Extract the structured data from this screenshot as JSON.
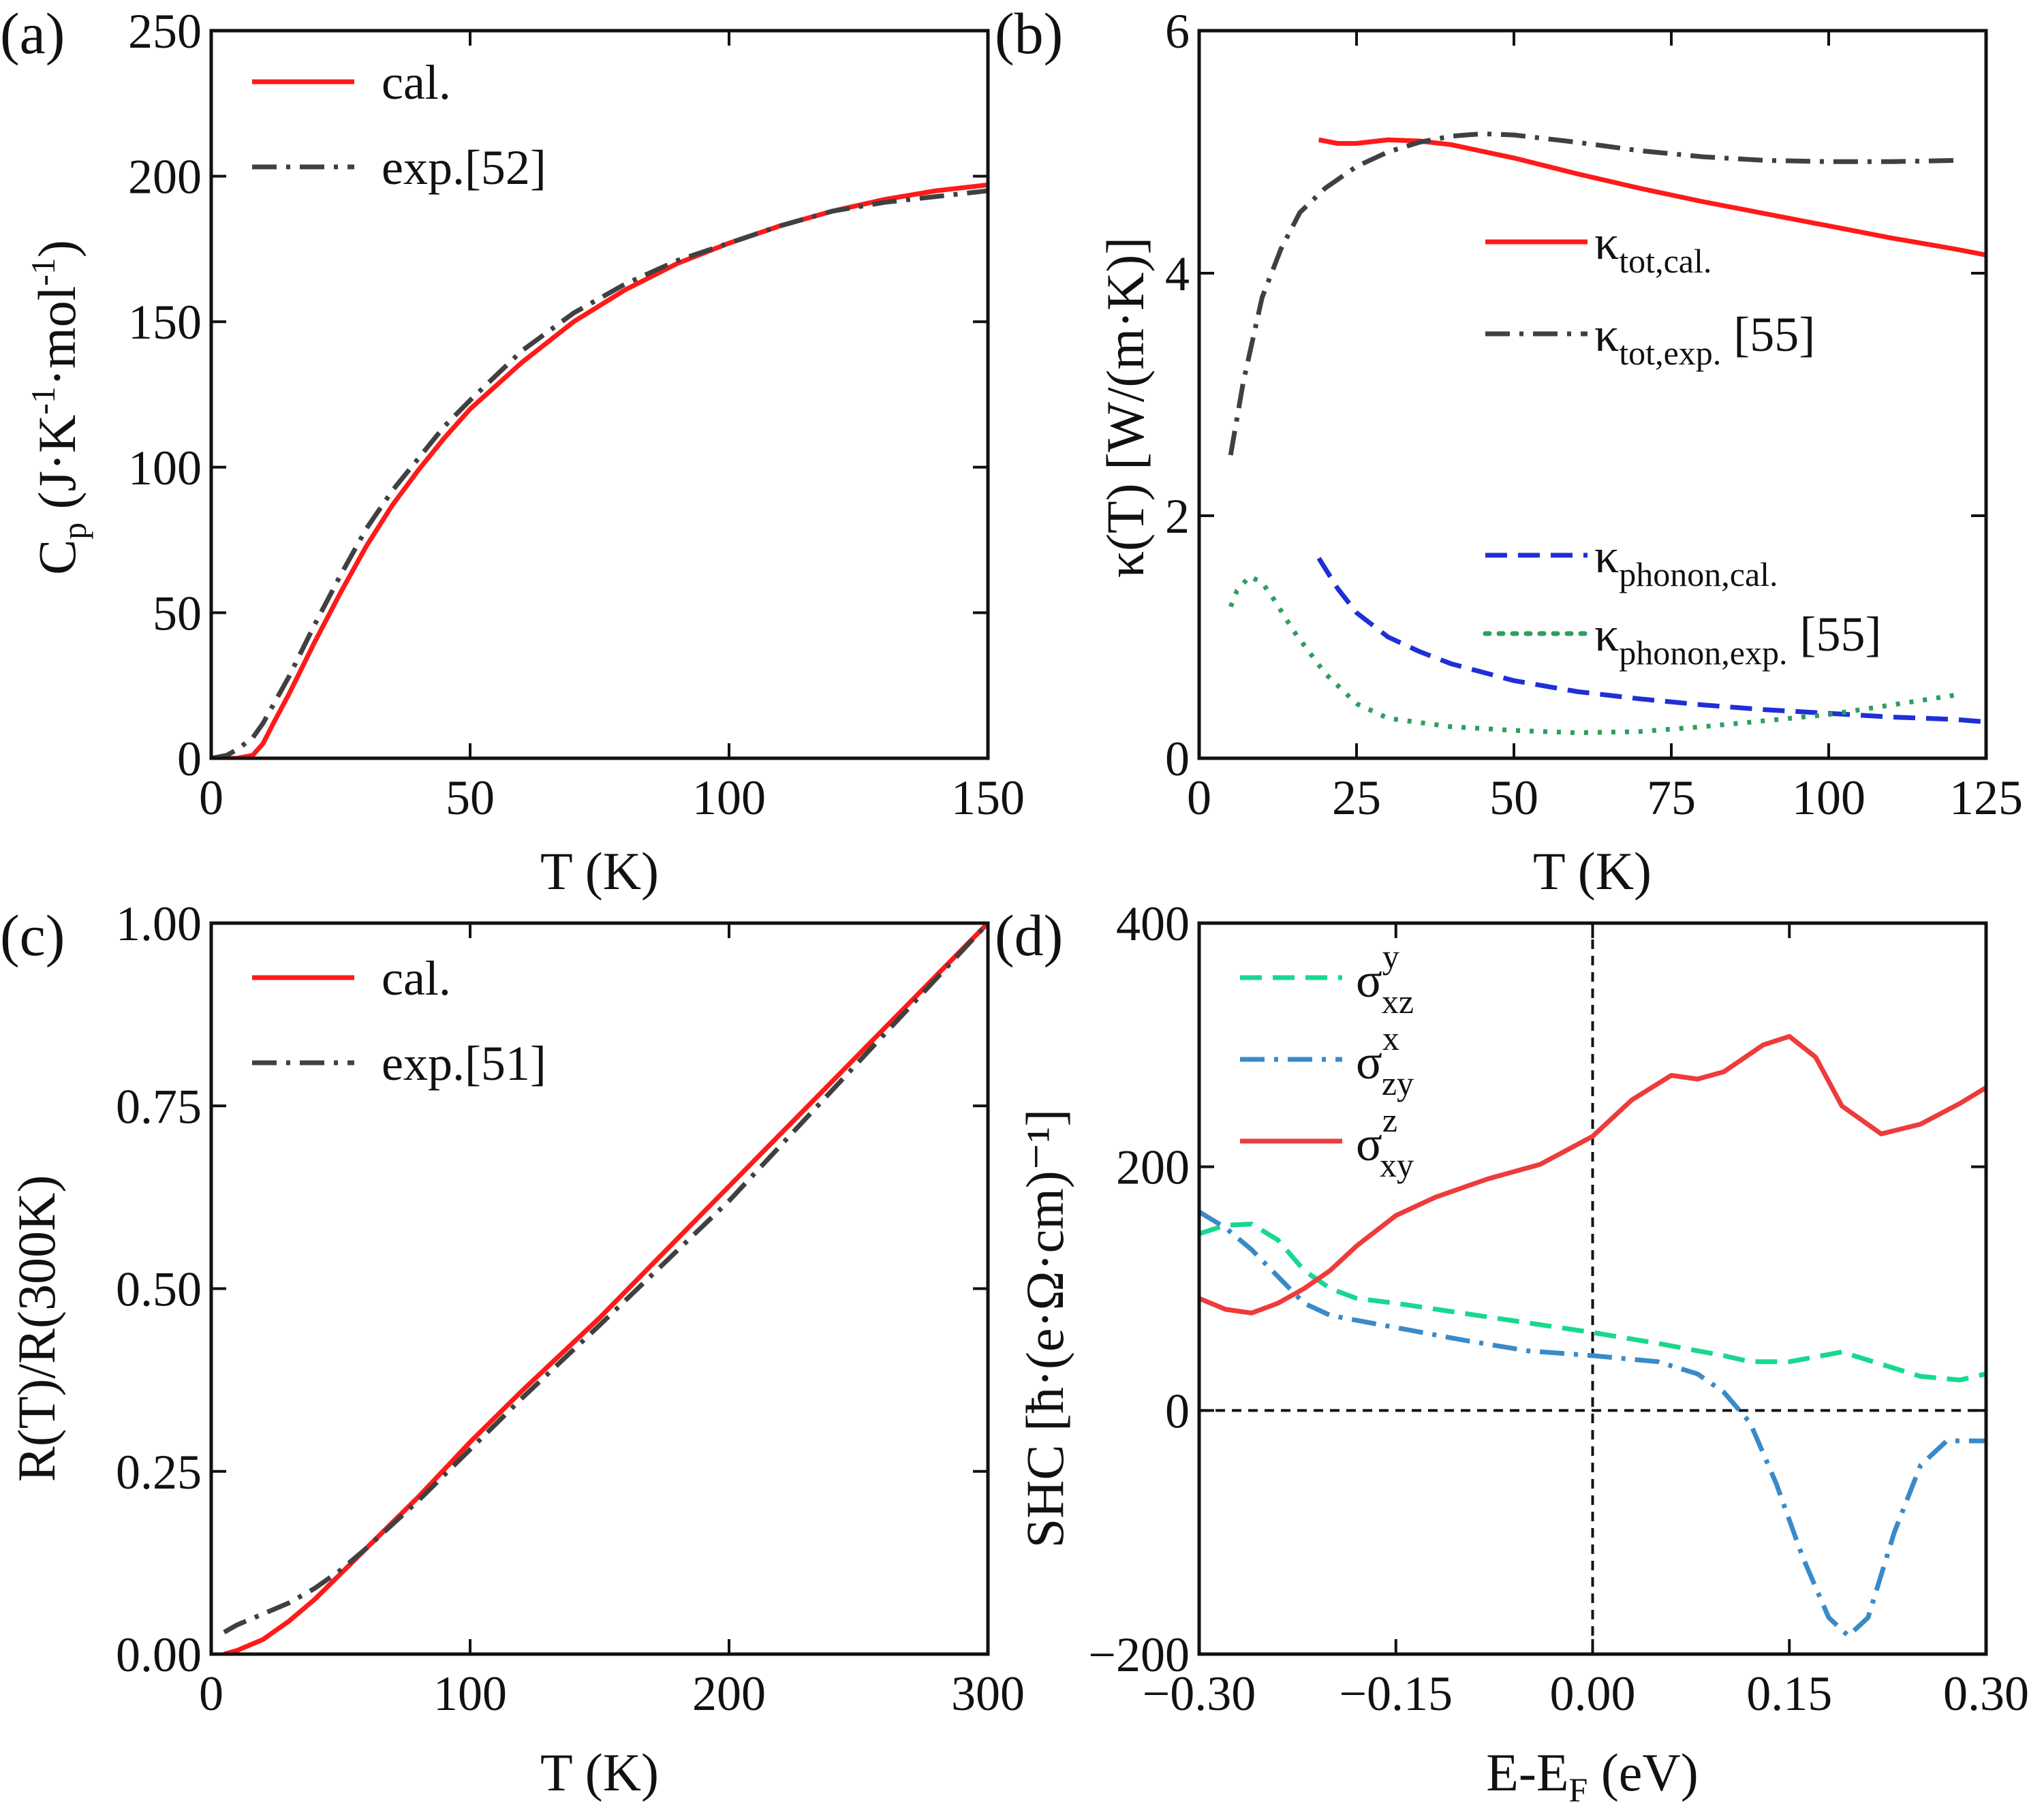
{
  "colors": {
    "red": "#ff1a1a",
    "red_light": "#ee3b3b",
    "gray": "#404040",
    "blue": "#1f2fd6",
    "green": "#2e9e5e",
    "teal": "#18d890",
    "steel": "#3a8ac8"
  },
  "chart_data": [
    {
      "panel": "(a)",
      "type": "line",
      "xlabel": "T (K)",
      "ylabel": "Cp (J·K⁻¹·mol⁻¹)",
      "ylabel_parts": {
        "main": "C",
        "sub": "p",
        "unit_a": " (J·K",
        "sup1": "-1",
        "unit_b": "·mol",
        "sup2": "-1",
        "unit_c": ")"
      },
      "xlim": [
        0,
        150
      ],
      "ylim": [
        0,
        250
      ],
      "xticks": [
        0,
        50,
        100,
        150
      ],
      "yticks": [
        0,
        50,
        100,
        150,
        200,
        250
      ],
      "legend_position": "top-left",
      "series": [
        {
          "name": "cal.",
          "color": "red",
          "style": "solid",
          "points": [
            [
              0,
              0
            ],
            [
              5,
              0
            ],
            [
              8,
              1
            ],
            [
              10,
              5
            ],
            [
              12,
              12
            ],
            [
              15,
              22
            ],
            [
              20,
              40
            ],
            [
              25,
              57
            ],
            [
              30,
              73
            ],
            [
              35,
              87
            ],
            [
              40,
              99
            ],
            [
              45,
              110
            ],
            [
              50,
              120
            ],
            [
              60,
              136
            ],
            [
              70,
              150
            ],
            [
              80,
              161
            ],
            [
              90,
              170
            ],
            [
              100,
              177
            ],
            [
              110,
              183
            ],
            [
              120,
              188
            ],
            [
              130,
              192
            ],
            [
              140,
              195
            ],
            [
              150,
              197
            ]
          ]
        },
        {
          "name": "exp.[52]",
          "color": "gray",
          "style": "dashdot",
          "points": [
            [
              0,
              0
            ],
            [
              3,
              1
            ],
            [
              5,
              3
            ],
            [
              8,
              7
            ],
            [
              10,
              12
            ],
            [
              15,
              28
            ],
            [
              20,
              46
            ],
            [
              25,
              63
            ],
            [
              30,
              79
            ],
            [
              35,
              92
            ],
            [
              40,
              103
            ],
            [
              45,
              114
            ],
            [
              50,
              123
            ],
            [
              60,
              140
            ],
            [
              70,
              153
            ],
            [
              80,
              163
            ],
            [
              90,
              171
            ],
            [
              100,
              177
            ],
            [
              110,
              183
            ],
            [
              120,
              188
            ],
            [
              130,
              191
            ],
            [
              140,
              193
            ],
            [
              150,
              195
            ]
          ]
        }
      ]
    },
    {
      "panel": "(b)",
      "type": "line",
      "xlabel": "T (K)",
      "ylabel": "κ(T) [W/(m·K)]",
      "xlim": [
        0,
        125
      ],
      "ylim": [
        0,
        6
      ],
      "xticks": [
        0,
        25,
        50,
        75,
        100,
        125
      ],
      "yticks": [
        0,
        2,
        4,
        6
      ],
      "legend_position": "right",
      "series": [
        {
          "name": "κtot,cal.",
          "legend_main": "κ",
          "legend_sub": "tot,cal.",
          "legend_tail": "",
          "color": "red",
          "style": "solid",
          "points": [
            [
              19,
              5.1
            ],
            [
              22,
              5.07
            ],
            [
              25,
              5.07
            ],
            [
              30,
              5.1
            ],
            [
              35,
              5.09
            ],
            [
              40,
              5.06
            ],
            [
              50,
              4.95
            ],
            [
              60,
              4.82
            ],
            [
              70,
              4.7
            ],
            [
              80,
              4.59
            ],
            [
              90,
              4.49
            ],
            [
              100,
              4.39
            ],
            [
              110,
              4.29
            ],
            [
              120,
              4.2
            ],
            [
              125,
              4.15
            ]
          ]
        },
        {
          "name": "κtot,exp.[55]",
          "legend_main": "κ",
          "legend_sub": "tot,exp.",
          "legend_tail": "[55]",
          "color": "gray",
          "style": "dashdot",
          "points": [
            [
              5,
              2.5
            ],
            [
              7,
              3.1
            ],
            [
              10,
              3.8
            ],
            [
              13,
              4.2
            ],
            [
              16,
              4.5
            ],
            [
              20,
              4.7
            ],
            [
              25,
              4.88
            ],
            [
              30,
              5.0
            ],
            [
              35,
              5.08
            ],
            [
              40,
              5.13
            ],
            [
              45,
              5.15
            ],
            [
              50,
              5.14
            ],
            [
              60,
              5.08
            ],
            [
              70,
              5.01
            ],
            [
              80,
              4.96
            ],
            [
              90,
              4.93
            ],
            [
              100,
              4.92
            ],
            [
              110,
              4.92
            ],
            [
              120,
              4.93
            ]
          ]
        },
        {
          "name": "κphonon,cal.",
          "legend_main": "κ",
          "legend_sub": "phonon,cal.",
          "legend_tail": "",
          "color": "blue",
          "style": "dashed",
          "points": [
            [
              19,
              1.65
            ],
            [
              22,
              1.4
            ],
            [
              25,
              1.2
            ],
            [
              30,
              1.0
            ],
            [
              35,
              0.88
            ],
            [
              40,
              0.78
            ],
            [
              50,
              0.64
            ],
            [
              60,
              0.55
            ],
            [
              70,
              0.49
            ],
            [
              80,
              0.44
            ],
            [
              90,
              0.4
            ],
            [
              100,
              0.37
            ],
            [
              110,
              0.34
            ],
            [
              120,
              0.32
            ],
            [
              125,
              0.3
            ]
          ]
        },
        {
          "name": "κphonon,exp.[55]",
          "legend_main": "κ",
          "legend_sub": "phonon,exp.",
          "legend_tail": "[55]",
          "color": "green",
          "style": "dotted",
          "points": [
            [
              5,
              1.25
            ],
            [
              6,
              1.38
            ],
            [
              8,
              1.5
            ],
            [
              10,
              1.45
            ],
            [
              12,
              1.3
            ],
            [
              15,
              1.05
            ],
            [
              20,
              0.7
            ],
            [
              25,
              0.45
            ],
            [
              30,
              0.33
            ],
            [
              40,
              0.26
            ],
            [
              50,
              0.23
            ],
            [
              60,
              0.21
            ],
            [
              70,
              0.22
            ],
            [
              80,
              0.26
            ],
            [
              90,
              0.31
            ],
            [
              100,
              0.36
            ],
            [
              110,
              0.44
            ],
            [
              120,
              0.52
            ]
          ]
        }
      ]
    },
    {
      "panel": "(c)",
      "type": "line",
      "xlabel": "T (K)",
      "ylabel": "R(T)/R(300K)",
      "xlim": [
        0,
        300
      ],
      "ylim": [
        0,
        1
      ],
      "xticks": [
        0,
        100,
        200,
        300
      ],
      "ytick_labels": [
        "0.00",
        "0.25",
        "0.50",
        "0.75",
        "1.00"
      ],
      "yticks": [
        0,
        0.25,
        0.5,
        0.75,
        1.0
      ],
      "legend_position": "top-left",
      "series": [
        {
          "name": "cal.",
          "color": "red",
          "style": "solid",
          "points": [
            [
              5,
              0
            ],
            [
              10,
              0.005
            ],
            [
              20,
              0.02
            ],
            [
              30,
              0.045
            ],
            [
              40,
              0.075
            ],
            [
              50,
              0.11
            ],
            [
              60,
              0.145
            ],
            [
              80,
              0.215
            ],
            [
              100,
              0.29
            ],
            [
              120,
              0.36
            ],
            [
              150,
              0.46
            ],
            [
              200,
              0.64
            ],
            [
              250,
              0.82
            ],
            [
              300,
              1.0
            ]
          ]
        },
        {
          "name": "exp.[51]",
          "color": "gray",
          "style": "dashdot",
          "points": [
            [
              5,
              0.03
            ],
            [
              10,
              0.04
            ],
            [
              20,
              0.055
            ],
            [
              30,
              0.07
            ],
            [
              40,
              0.09
            ],
            [
              50,
              0.115
            ],
            [
              60,
              0.145
            ],
            [
              80,
              0.21
            ],
            [
              100,
              0.28
            ],
            [
              120,
              0.35
            ],
            [
              150,
              0.45
            ],
            [
              200,
              0.62
            ],
            [
              250,
              0.81
            ],
            [
              300,
              1.0
            ]
          ]
        }
      ]
    },
    {
      "panel": "(d)",
      "type": "line",
      "xlabel": "E-EF (eV)",
      "ylabel": "SHC [ħ·(e·Ω·cm)⁻¹]",
      "xlim": [
        -0.3,
        0.3
      ],
      "ylim": [
        -200,
        400
      ],
      "xticks": [
        -0.3,
        -0.15,
        0.0,
        0.15,
        0.3
      ],
      "xtick_labels": [
        "−0.30",
        "−0.15",
        "0.00",
        "0.15",
        "0.30"
      ],
      "yticks": [
        -200,
        0,
        200,
        400
      ],
      "ytick_labels": [
        "−200",
        "0",
        "200",
        "400"
      ],
      "reference_lines": {
        "x": 0,
        "y": 0
      },
      "legend_position": "top-left",
      "series": [
        {
          "name": "σyxz",
          "legend_main": "σ",
          "legend_sup": "y",
          "legend_sub": "xz",
          "color": "teal",
          "style": "dashed",
          "points": [
            [
              -0.3,
              145
            ],
            [
              -0.28,
              152
            ],
            [
              -0.26,
              153
            ],
            [
              -0.24,
              140
            ],
            [
              -0.22,
              115
            ],
            [
              -0.2,
              100
            ],
            [
              -0.18,
              92
            ],
            [
              -0.15,
              88
            ],
            [
              -0.1,
              80
            ],
            [
              -0.05,
              72
            ],
            [
              0.0,
              64
            ],
            [
              0.05,
              55
            ],
            [
              0.1,
              45
            ],
            [
              0.12,
              40
            ],
            [
              0.15,
              40
            ],
            [
              0.19,
              48
            ],
            [
              0.22,
              38
            ],
            [
              0.25,
              28
            ],
            [
              0.28,
              25
            ],
            [
              0.3,
              30
            ]
          ]
        },
        {
          "name": "σxzy",
          "legend_main": "σ",
          "legend_sup": "x",
          "legend_sub": "zy",
          "color": "steel",
          "style": "dashdot",
          "points": [
            [
              -0.3,
              163
            ],
            [
              -0.28,
              150
            ],
            [
              -0.26,
              132
            ],
            [
              -0.24,
              110
            ],
            [
              -0.22,
              88
            ],
            [
              -0.2,
              78
            ],
            [
              -0.15,
              68
            ],
            [
              -0.1,
              58
            ],
            [
              -0.05,
              49
            ],
            [
              0.0,
              45
            ],
            [
              0.05,
              40
            ],
            [
              0.08,
              30
            ],
            [
              0.1,
              15
            ],
            [
              0.12,
              -10
            ],
            [
              0.14,
              -60
            ],
            [
              0.16,
              -120
            ],
            [
              0.18,
              -170
            ],
            [
              0.195,
              -185
            ],
            [
              0.21,
              -170
            ],
            [
              0.23,
              -100
            ],
            [
              0.25,
              -45
            ],
            [
              0.27,
              -25
            ],
            [
              0.3,
              -25
            ]
          ]
        },
        {
          "name": "σzxy",
          "legend_main": "σ",
          "legend_sup": "z",
          "legend_sub": "xy",
          "color": "red_light",
          "style": "solid",
          "points": [
            [
              -0.3,
              92
            ],
            [
              -0.28,
              83
            ],
            [
              -0.26,
              80
            ],
            [
              -0.24,
              88
            ],
            [
              -0.22,
              100
            ],
            [
              -0.2,
              115
            ],
            [
              -0.18,
              135
            ],
            [
              -0.15,
              160
            ],
            [
              -0.12,
              175
            ],
            [
              -0.08,
              190
            ],
            [
              -0.04,
              202
            ],
            [
              0.0,
              225
            ],
            [
              0.03,
              255
            ],
            [
              0.06,
              275
            ],
            [
              0.08,
              272
            ],
            [
              0.1,
              278
            ],
            [
              0.13,
              300
            ],
            [
              0.15,
              307
            ],
            [
              0.17,
              290
            ],
            [
              0.19,
              250
            ],
            [
              0.22,
              227
            ],
            [
              0.25,
              235
            ],
            [
              0.28,
              252
            ],
            [
              0.3,
              265
            ]
          ]
        }
      ]
    }
  ]
}
